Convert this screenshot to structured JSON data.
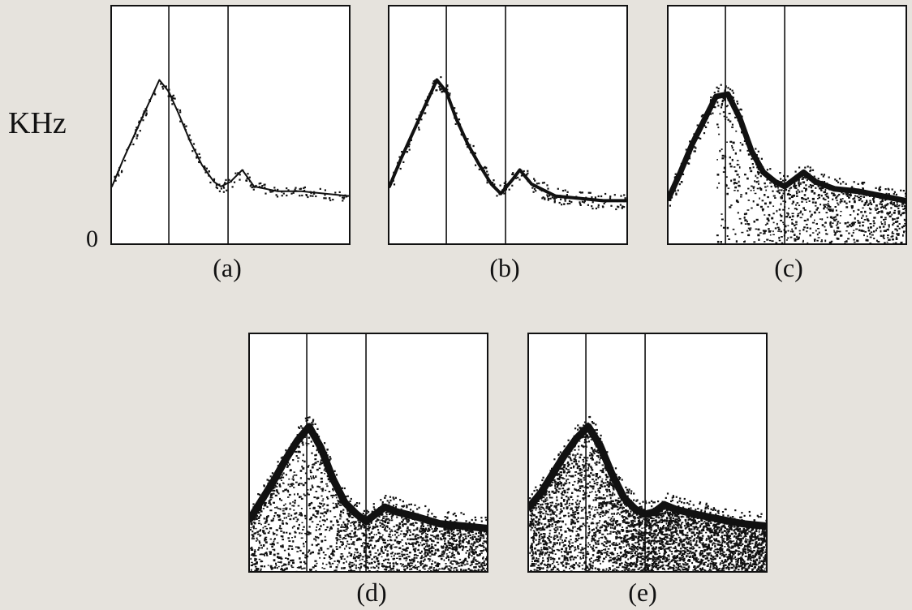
{
  "figure": {
    "y_axis_label": "KHz",
    "y_zero_label": "0"
  },
  "chart_data": [
    {
      "type": "line",
      "panel_label": "(a)",
      "ylim": [
        0,
        1
      ],
      "xlim": [
        0,
        1
      ],
      "vertical_markers": [
        0.24,
        0.49
      ],
      "shading_density": 0,
      "trace_thickness": 2,
      "x": [
        0,
        0.05,
        0.1,
        0.15,
        0.2,
        0.24,
        0.28,
        0.33,
        0.38,
        0.43,
        0.46,
        0.5,
        0.55,
        0.6,
        0.7,
        0.8,
        0.9,
        1.0
      ],
      "y": [
        0.24,
        0.36,
        0.47,
        0.58,
        0.69,
        0.64,
        0.55,
        0.43,
        0.33,
        0.26,
        0.24,
        0.26,
        0.31,
        0.24,
        0.22,
        0.22,
        0.21,
        0.2
      ]
    },
    {
      "type": "line",
      "panel_label": "(b)",
      "ylim": [
        0,
        1
      ],
      "xlim": [
        0,
        1
      ],
      "vertical_markers": [
        0.24,
        0.49
      ],
      "shading_density": 0,
      "trace_thickness": 4,
      "x": [
        0,
        0.05,
        0.1,
        0.15,
        0.2,
        0.24,
        0.28,
        0.33,
        0.38,
        0.43,
        0.47,
        0.52,
        0.55,
        0.6,
        0.7,
        0.8,
        0.9,
        1.0
      ],
      "y": [
        0.24,
        0.36,
        0.47,
        0.58,
        0.69,
        0.64,
        0.53,
        0.42,
        0.33,
        0.25,
        0.21,
        0.27,
        0.31,
        0.25,
        0.2,
        0.19,
        0.18,
        0.18
      ]
    },
    {
      "type": "line",
      "panel_label": "(c)",
      "ylim": [
        0,
        1
      ],
      "xlim": [
        0,
        1
      ],
      "vertical_markers": [
        0.24,
        0.49
      ],
      "shading_density": 0.12,
      "trace_thickness": 7,
      "x": [
        0,
        0.05,
        0.1,
        0.15,
        0.2,
        0.25,
        0.3,
        0.35,
        0.4,
        0.45,
        0.49,
        0.53,
        0.57,
        0.62,
        0.7,
        0.8,
        0.9,
        1.0
      ],
      "y": [
        0.19,
        0.3,
        0.42,
        0.52,
        0.62,
        0.63,
        0.53,
        0.39,
        0.3,
        0.26,
        0.24,
        0.27,
        0.3,
        0.26,
        0.23,
        0.22,
        0.2,
        0.18
      ]
    },
    {
      "type": "line",
      "panel_label": "(d)",
      "ylim": [
        0,
        1
      ],
      "xlim": [
        0,
        1
      ],
      "vertical_markers": [
        0.24,
        0.49
      ],
      "shading_density": 0.3,
      "trace_thickness": 9,
      "x": [
        0,
        0.05,
        0.1,
        0.15,
        0.2,
        0.25,
        0.3,
        0.35,
        0.4,
        0.45,
        0.49,
        0.53,
        0.57,
        0.62,
        0.7,
        0.8,
        0.9,
        1.0
      ],
      "y": [
        0.22,
        0.3,
        0.38,
        0.47,
        0.55,
        0.61,
        0.52,
        0.39,
        0.29,
        0.24,
        0.21,
        0.24,
        0.27,
        0.25,
        0.23,
        0.2,
        0.19,
        0.18
      ]
    },
    {
      "type": "line",
      "panel_label": "(e)",
      "ylim": [
        0,
        1
      ],
      "xlim": [
        0,
        1
      ],
      "vertical_markers": [
        0.24,
        0.49
      ],
      "shading_density": 0.55,
      "trace_thickness": 9,
      "x": [
        0,
        0.05,
        0.1,
        0.15,
        0.2,
        0.25,
        0.3,
        0.35,
        0.4,
        0.45,
        0.49,
        0.53,
        0.57,
        0.62,
        0.7,
        0.8,
        0.9,
        1.0
      ],
      "y": [
        0.27,
        0.33,
        0.41,
        0.49,
        0.56,
        0.61,
        0.53,
        0.41,
        0.31,
        0.26,
        0.24,
        0.25,
        0.28,
        0.26,
        0.24,
        0.22,
        0.2,
        0.19
      ]
    }
  ]
}
